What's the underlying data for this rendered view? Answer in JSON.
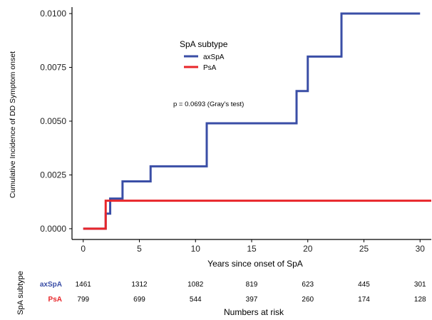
{
  "chart_data": {
    "type": "line",
    "step": true,
    "title": "",
    "xlabel": "Years since onset of SpA",
    "ylabel": "Cumulative Incidence of DD Symptom onset",
    "xlim": [
      -1,
      31
    ],
    "ylim": [
      -0.0005,
      0.0103
    ],
    "x_ticks": [
      0,
      5,
      10,
      15,
      20,
      25,
      30
    ],
    "y_ticks": [
      0,
      0.0025,
      0.005,
      0.0075,
      0.01
    ],
    "y_tick_labels": [
      "0.0000",
      "0.0025",
      "0.0050",
      "0.0075",
      "0.0100"
    ],
    "grid": false,
    "legend": {
      "title": "SpA subtype",
      "position": "top-center"
    },
    "annotation": "p = 0.0693 (Gray's test)",
    "series": [
      {
        "name": "axSpA",
        "color": "#3a4ea6",
        "x": [
          0,
          2,
          2.4,
          3.5,
          6,
          11,
          19,
          20,
          23,
          30
        ],
        "y": [
          0,
          0.0007,
          0.0014,
          0.0022,
          0.0029,
          0.0049,
          0.0064,
          0.008,
          0.01,
          0.01
        ]
      },
      {
        "name": "PsA",
        "color": "#e8262a",
        "x": [
          0,
          2,
          31
        ],
        "y": [
          0,
          0.0013,
          0.0013
        ]
      }
    ]
  },
  "risk_table": {
    "title": "Numbers at risk",
    "ylabel": "SpA subtype",
    "rows": [
      {
        "label": "axSpA",
        "color": "#3a4ea6",
        "values": [
          "1461",
          "1312",
          "1082",
          "819",
          "623",
          "445",
          "301"
        ]
      },
      {
        "label": "PsA",
        "color": "#e8262a",
        "values": [
          "799",
          "699",
          "544",
          "397",
          "260",
          "174",
          "128"
        ]
      }
    ]
  }
}
